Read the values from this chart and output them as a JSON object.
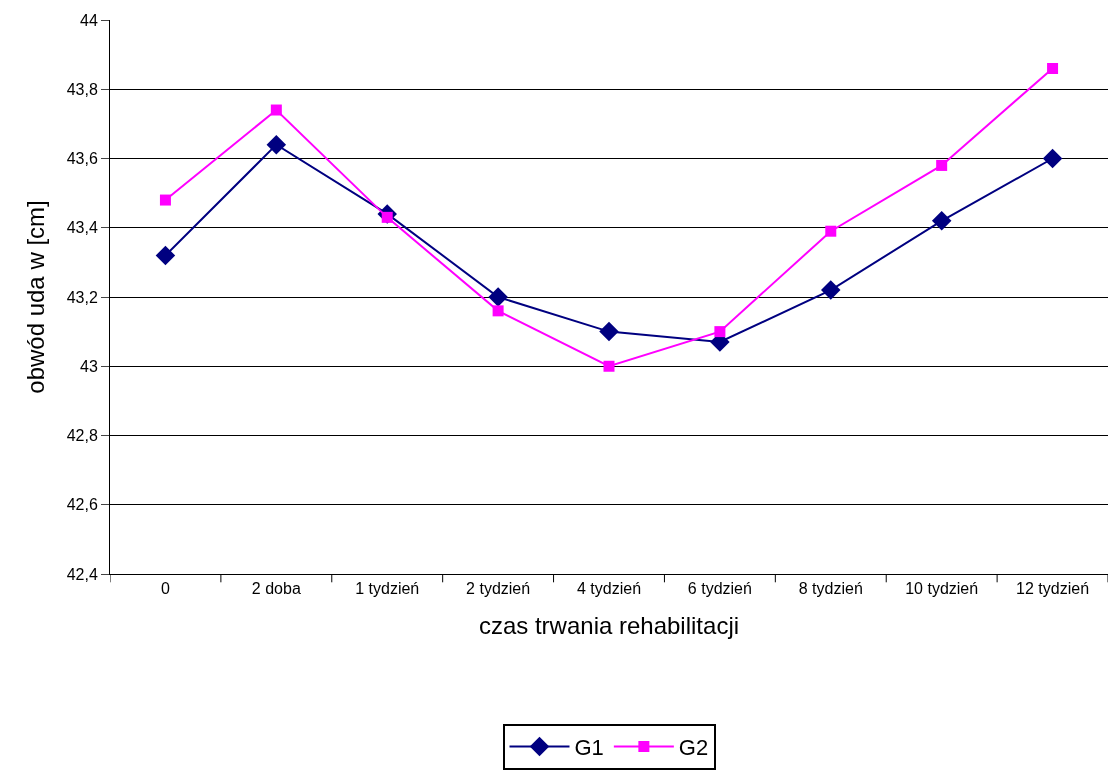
{
  "chart_data": {
    "type": "line",
    "xlabel": "czas trwania rehabilitacji",
    "ylabel": "obwód uda w [cm]",
    "categories": [
      "0",
      "2 doba",
      "1 tydzień",
      "2 tydzień",
      "4 tydzień",
      "6 tydzień",
      "8 tydzień",
      "10 tydzień",
      "12 tydzień"
    ],
    "series": [
      {
        "name": "G1",
        "color": "#000080",
        "marker": "diamond",
        "values": [
          43.32,
          43.64,
          43.44,
          43.2,
          43.1,
          43.07,
          43.22,
          43.42,
          43.6
        ]
      },
      {
        "name": "G2",
        "color": "#ff00ff",
        "marker": "square",
        "values": [
          43.48,
          43.74,
          43.43,
          43.16,
          43.0,
          43.1,
          43.39,
          43.58,
          43.86
        ]
      }
    ],
    "ylim": [
      42.4,
      44
    ],
    "yticks": [
      {
        "value": 42.4,
        "label": "42,4"
      },
      {
        "value": 42.6,
        "label": "42,6"
      },
      {
        "value": 42.8,
        "label": "42,8"
      },
      43,
      {
        "value": 43.2,
        "label": "43,2"
      },
      {
        "value": 43.4,
        "label": "43,4"
      },
      {
        "value": 43.6,
        "label": "43,6"
      },
      {
        "value": 43.8,
        "label": "43,8"
      },
      44
    ],
    "grid": "y",
    "legend": "bottom",
    "line_style": "solid"
  }
}
